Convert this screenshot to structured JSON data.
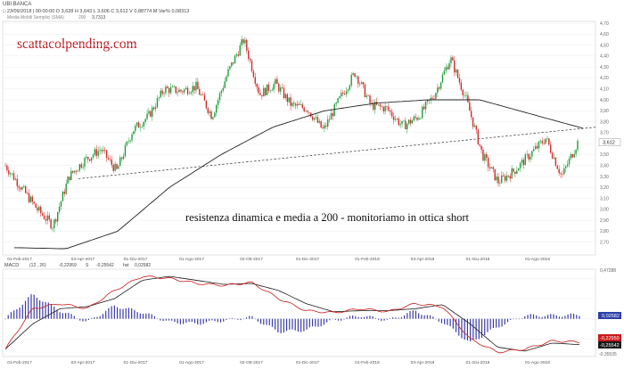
{
  "header": {
    "symbol": "UBI BANCA",
    "ohlc_line": "□ 23/09/2018 | 00:00:00   O 3,628   H 3,643   L 3,606   C 3,612   V 0,88774 M   Var% 0,08313",
    "sma_label": "Media Mobili Semplici (SMA)",
    "sma_period": "200",
    "sma_value": "3,7313"
  },
  "watermark": "scattacolpending.com",
  "annotation": "resistenza dinamica e media a 200 - monitoriamo in ottica short",
  "price_axis": {
    "min": 2.6,
    "max": 4.7,
    "ticks": [
      "4,70",
      "4,60",
      "4,50",
      "4,40",
      "4,30",
      "4,20",
      "4,10",
      "4,00",
      "3,90",
      "3,80",
      "3,70",
      "3,60",
      "3,50",
      "3,40",
      "3,30",
      "3,20",
      "3,10",
      "3,00",
      "2,90",
      "2,80",
      "2,70"
    ],
    "tick_values": [
      4.7,
      4.6,
      4.5,
      4.4,
      4.3,
      4.2,
      4.1,
      4.0,
      3.9,
      3.8,
      3.7,
      3.6,
      3.5,
      3.4,
      3.3,
      3.2,
      3.1,
      3.0,
      2.9,
      2.8,
      2.7
    ],
    "last_price_label": "3,612",
    "last_price": 3.612
  },
  "macd": {
    "label": "MACD",
    "params": "(12 , 26)",
    "macd_value": "-0,22959",
    "signal_marker": "S",
    "signal_value": "-0,25542",
    "hist_label": "hst",
    "hist_value": "0,02582",
    "axis_top": "0,47288",
    "axis_bottom": "-0,35535",
    "axis_max": 0.47288,
    "axis_min": -0.35535,
    "badge_hist": "0,02582",
    "badge_macd": "-0,22959",
    "badge_signal": "-0,25542",
    "colors": {
      "macd": "#cc1a1a",
      "signal": "#1a1a1a",
      "hist": "#3a3aa8"
    }
  },
  "x_axis": {
    "labels": [
      "01-Feb-2017",
      "03-Apr-2017",
      "01-Giu-2017",
      "01-Ago-2017",
      "02-Ott-2017",
      "01-Dic-2017",
      "01-Feb-2018",
      "03-Apr-2018",
      "01-Giu-2018",
      "01-Ago-2018"
    ]
  },
  "chart_data": {
    "type": "candlestick",
    "title": "UBI BANCA",
    "period": "2017-01 to 2018-09",
    "price_range": [
      2.6,
      4.7
    ],
    "ma200_anchors": [
      {
        "date": "2017-01",
        "value": 2.65
      },
      {
        "date": "2017-03",
        "value": 2.64
      },
      {
        "date": "2017-05",
        "value": 2.8
      },
      {
        "date": "2017-07",
        "value": 3.2
      },
      {
        "date": "2017-08",
        "value": 3.5
      },
      {
        "date": "2017-10",
        "value": 3.75
      },
      {
        "date": "2017-12",
        "value": 3.9
      },
      {
        "date": "2018-02",
        "value": 3.97
      },
      {
        "date": "2018-04",
        "value": 4.0
      },
      {
        "date": "2018-05",
        "value": 4.0
      },
      {
        "date": "2018-07",
        "value": 3.87
      },
      {
        "date": "2018-09",
        "value": 3.74
      }
    ],
    "trendline": {
      "from": {
        "date": "2017-03",
        "value": 3.28
      },
      "to": {
        "date": "2018-09",
        "value": 3.75
      }
    },
    "close_anchors": [
      {
        "date": "2017-01",
        "value": 3.4
      },
      {
        "date": "2017-02",
        "value": 3.2
      },
      {
        "date": "2017-02b",
        "value": 3.0
      },
      {
        "date": "2017-03",
        "value": 2.85
      },
      {
        "date": "2017-03b",
        "value": 3.3
      },
      {
        "date": "2017-04",
        "value": 3.45
      },
      {
        "date": "2017-05",
        "value": 3.55
      },
      {
        "date": "2017-05b",
        "value": 3.35
      },
      {
        "date": "2017-06",
        "value": 3.72
      },
      {
        "date": "2017-06b",
        "value": 3.85
      },
      {
        "date": "2017-07",
        "value": 4.1
      },
      {
        "date": "2017-07b",
        "value": 4.08
      },
      {
        "date": "2017-08",
        "value": 4.12
      },
      {
        "date": "2017-08b",
        "value": 3.85
      },
      {
        "date": "2017-09",
        "value": 4.25
      },
      {
        "date": "2017-10",
        "value": 4.55
      },
      {
        "date": "2017-10b",
        "value": 4.05
      },
      {
        "date": "2017-11",
        "value": 4.15
      },
      {
        "date": "2017-11b",
        "value": 3.95
      },
      {
        "date": "2017-12",
        "value": 3.92
      },
      {
        "date": "2018-01",
        "value": 3.72
      },
      {
        "date": "2018-01b",
        "value": 4.0
      },
      {
        "date": "2018-02",
        "value": 4.25
      },
      {
        "date": "2018-02b",
        "value": 3.95
      },
      {
        "date": "2018-03",
        "value": 3.92
      },
      {
        "date": "2018-03b",
        "value": 3.76
      },
      {
        "date": "2018-04",
        "value": 3.85
      },
      {
        "date": "2018-04b",
        "value": 4.05
      },
      {
        "date": "2018-05",
        "value": 4.38
      },
      {
        "date": "2018-05b",
        "value": 4.0
      },
      {
        "date": "2018-06",
        "value": 3.5
      },
      {
        "date": "2018-06b",
        "value": 3.25
      },
      {
        "date": "2018-07",
        "value": 3.35
      },
      {
        "date": "2018-07b",
        "value": 3.5
      },
      {
        "date": "2018-08",
        "value": 3.65
      },
      {
        "date": "2018-08b",
        "value": 3.3
      },
      {
        "date": "2018-09",
        "value": 3.612
      }
    ],
    "macd_anchors": [
      {
        "date": "2017-01",
        "macd": -0.3,
        "signal": -0.3
      },
      {
        "date": "2017-02",
        "macd": 0.1,
        "signal": -0.05
      },
      {
        "date": "2017-03",
        "macd": 0.15,
        "signal": 0.1
      },
      {
        "date": "2017-04",
        "macd": 0.1,
        "signal": 0.12
      },
      {
        "date": "2017-05",
        "macd": 0.28,
        "signal": 0.2
      },
      {
        "date": "2017-06",
        "macd": 0.42,
        "signal": 0.38
      },
      {
        "date": "2017-07",
        "macd": 0.4,
        "signal": 0.42
      },
      {
        "date": "2017-08",
        "macd": 0.35,
        "signal": 0.38
      },
      {
        "date": "2017-09",
        "macd": 0.33,
        "signal": 0.34
      },
      {
        "date": "2017-10",
        "macd": 0.36,
        "signal": 0.35
      },
      {
        "date": "2017-11",
        "macd": 0.2,
        "signal": 0.28
      },
      {
        "date": "2017-12",
        "macd": 0.08,
        "signal": 0.15
      },
      {
        "date": "2018-01",
        "macd": 0.06,
        "signal": 0.07
      },
      {
        "date": "2018-02",
        "macd": 0.1,
        "signal": 0.08
      },
      {
        "date": "2018-03",
        "macd": 0.07,
        "signal": 0.08
      },
      {
        "date": "2018-04",
        "macd": 0.15,
        "signal": 0.1
      },
      {
        "date": "2018-05",
        "macd": 0.12,
        "signal": 0.14
      },
      {
        "date": "2018-06",
        "macd": -0.2,
        "signal": -0.05
      },
      {
        "date": "2018-06b",
        "macd": -0.33,
        "signal": -0.28
      },
      {
        "date": "2018-07",
        "macd": -0.3,
        "signal": -0.32
      },
      {
        "date": "2018-08",
        "macd": -0.22,
        "signal": -0.24
      },
      {
        "date": "2018-09",
        "macd": -0.23,
        "signal": -0.255
      }
    ]
  }
}
